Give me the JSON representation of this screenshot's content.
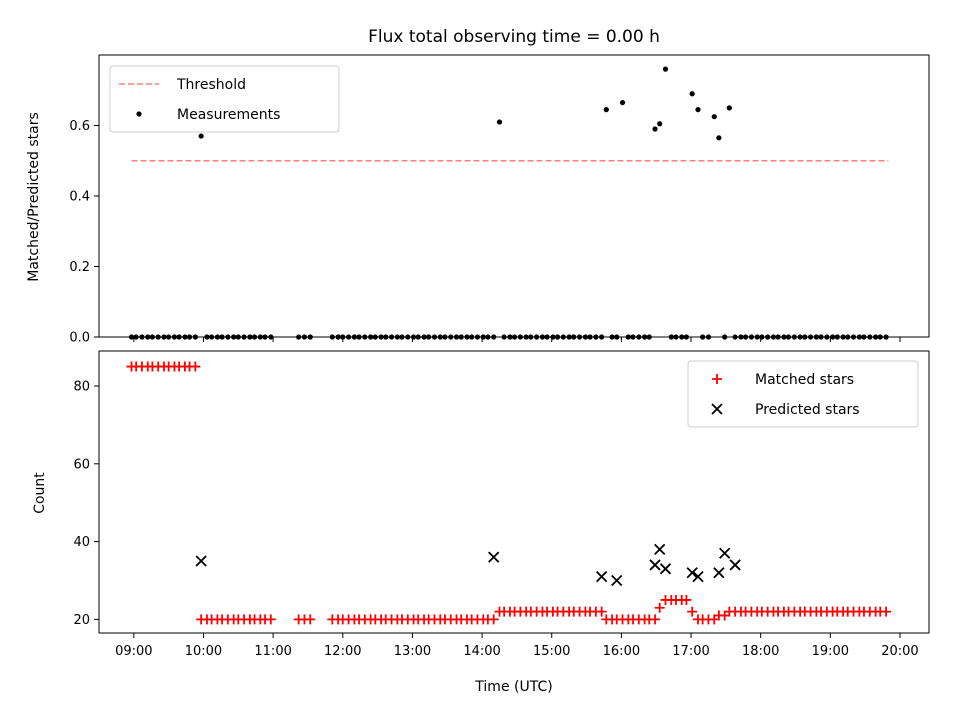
{
  "chart_data": [
    {
      "type": "scatter",
      "title": "Flux total observing time = 0.00 h",
      "xlabel": "",
      "ylabel": "Matched/Predicted stars",
      "xlim": [
        "08:30",
        "20:25"
      ],
      "ylim": [
        0,
        0.8
      ],
      "yticks": [
        0.0,
        0.2,
        0.4,
        0.6
      ],
      "ytick_labels": [
        "0.0",
        "0.2",
        "0.4",
        "0.6"
      ],
      "grid": false,
      "legend_position": "top-left",
      "threshold": {
        "name": "Threshold",
        "value": 0.5,
        "x_range": [
          "08:58",
          "19:50"
        ],
        "color": "#ff7f7f",
        "style": "dashed"
      },
      "series": [
        {
          "name": "Measurements",
          "color": "#000000",
          "marker": "dot",
          "x": [
            "08:58",
            "09:02",
            "09:07",
            "09:12",
            "09:16",
            "09:21",
            "09:26",
            "09:30",
            "09:35",
            "09:39",
            "09:44",
            "09:48",
            "09:53",
            "09:58",
            "10:03",
            "10:07",
            "10:12",
            "10:16",
            "10:21",
            "10:26",
            "10:30",
            "10:35",
            "10:40",
            "10:44",
            "10:49",
            "10:53",
            "10:58",
            "11:22",
            "11:27",
            "11:32",
            "11:51",
            "11:56",
            "12:00",
            "12:05",
            "12:10",
            "12:14",
            "12:19",
            "12:24",
            "12:28",
            "12:33",
            "12:37",
            "12:42",
            "12:47",
            "12:51",
            "12:56",
            "13:01",
            "13:05",
            "13:10",
            "13:14",
            "13:19",
            "13:24",
            "13:28",
            "13:33",
            "13:38",
            "13:42",
            "13:47",
            "13:51",
            "13:56",
            "14:01",
            "14:05",
            "14:10",
            "14:15",
            "14:19",
            "14:24",
            "14:28",
            "14:33",
            "14:38",
            "14:42",
            "14:47",
            "14:52",
            "14:56",
            "15:01",
            "15:05",
            "15:10",
            "15:15",
            "15:19",
            "15:24",
            "15:29",
            "15:33",
            "15:38",
            "15:43",
            "15:47",
            "15:52",
            "15:56",
            "16:01",
            "16:06",
            "16:10",
            "16:15",
            "16:20",
            "16:24",
            "16:29",
            "16:33",
            "16:38",
            "16:43",
            "16:47",
            "16:52",
            "16:56",
            "17:01",
            "17:06",
            "17:10",
            "17:15",
            "17:20",
            "17:24",
            "17:29",
            "17:33",
            "17:38",
            "17:43",
            "17:47",
            "17:52",
            "17:57",
            "18:01",
            "18:06",
            "18:11",
            "18:15",
            "18:20",
            "18:24",
            "18:29",
            "18:34",
            "18:38",
            "18:43",
            "18:48",
            "18:52",
            "18:57",
            "19:02",
            "19:06",
            "19:11",
            "19:15",
            "19:20",
            "19:25",
            "19:29",
            "19:34",
            "19:39",
            "19:43",
            "19:48"
          ],
          "y": [
            0,
            0,
            0,
            0,
            0,
            0,
            0,
            0,
            0,
            0,
            0,
            0,
            0,
            0.57,
            0,
            0,
            0,
            0,
            0,
            0,
            0,
            0,
            0,
            0,
            0,
            0,
            0,
            0,
            0,
            0,
            0,
            0,
            0,
            0,
            0,
            0,
            0,
            0,
            0,
            0,
            0,
            0,
            0,
            0,
            0,
            0,
            0,
            0,
            0,
            0,
            0,
            0,
            0,
            0,
            0,
            0,
            0,
            0,
            0,
            0,
            0,
            0.61,
            0,
            0,
            0,
            0,
            0,
            0,
            0,
            0,
            0,
            0,
            0,
            0,
            0,
            0,
            0,
            0,
            0,
            0,
            0,
            0.645,
            0,
            0,
            0.665,
            0,
            0,
            0,
            0,
            0,
            0.59,
            0.605,
            0.76,
            0,
            0,
            0,
            0,
            0.69,
            0.645,
            0,
            0,
            0.625,
            0.565,
            0,
            0.65,
            0,
            0,
            0,
            0,
            0,
            0,
            0,
            0,
            0,
            0,
            0,
            0,
            0,
            0,
            0,
            0,
            0,
            0,
            0,
            0,
            0,
            0,
            0,
            0,
            0,
            0,
            0,
            0,
            0
          ]
        }
      ]
    },
    {
      "type": "scatter",
      "title": "",
      "xlabel": "Time (UTC)",
      "ylabel": "Count",
      "xlim": [
        "08:30",
        "20:25"
      ],
      "ylim": [
        16.5,
        89
      ],
      "yticks": [
        20,
        40,
        60,
        80
      ],
      "ytick_labels": [
        "20",
        "40",
        "60",
        "80"
      ],
      "xticks": [
        "09:00",
        "10:00",
        "11:00",
        "12:00",
        "13:00",
        "14:00",
        "15:00",
        "16:00",
        "17:00",
        "18:00",
        "19:00",
        "20:00"
      ],
      "grid": false,
      "legend_position": "top-right",
      "series": [
        {
          "name": "Matched stars",
          "color": "#ff0000",
          "marker": "plus",
          "x": [
            "08:58",
            "09:02",
            "09:07",
            "09:12",
            "09:16",
            "09:21",
            "09:26",
            "09:30",
            "09:35",
            "09:39",
            "09:44",
            "09:48",
            "09:53",
            "09:58",
            "10:03",
            "10:07",
            "10:12",
            "10:16",
            "10:21",
            "10:26",
            "10:30",
            "10:35",
            "10:40",
            "10:44",
            "10:49",
            "10:53",
            "10:58",
            "11:22",
            "11:27",
            "11:32",
            "11:51",
            "11:56",
            "12:00",
            "12:05",
            "12:10",
            "12:14",
            "12:19",
            "12:24",
            "12:28",
            "12:33",
            "12:37",
            "12:42",
            "12:47",
            "12:51",
            "12:56",
            "13:01",
            "13:05",
            "13:10",
            "13:14",
            "13:19",
            "13:24",
            "13:28",
            "13:33",
            "13:38",
            "13:42",
            "13:47",
            "13:51",
            "13:56",
            "14:01",
            "14:05",
            "14:10",
            "14:15",
            "14:19",
            "14:24",
            "14:28",
            "14:33",
            "14:38",
            "14:42",
            "14:47",
            "14:52",
            "14:56",
            "15:01",
            "15:05",
            "15:10",
            "15:15",
            "15:19",
            "15:24",
            "15:29",
            "15:33",
            "15:38",
            "15:43",
            "15:47",
            "15:52",
            "15:56",
            "16:01",
            "16:06",
            "16:10",
            "16:15",
            "16:20",
            "16:24",
            "16:29",
            "16:33",
            "16:38",
            "16:43",
            "16:47",
            "16:52",
            "16:56",
            "17:01",
            "17:06",
            "17:10",
            "17:15",
            "17:20",
            "17:24",
            "17:29",
            "17:33",
            "17:38",
            "17:43",
            "17:47",
            "17:52",
            "17:57",
            "18:01",
            "18:06",
            "18:11",
            "18:15",
            "18:20",
            "18:24",
            "18:29",
            "18:34",
            "18:38",
            "18:43",
            "18:48",
            "18:52",
            "18:57",
            "19:02",
            "19:06",
            "19:11",
            "19:15",
            "19:20",
            "19:25",
            "19:29",
            "19:34",
            "19:39",
            "19:43",
            "19:48"
          ],
          "y": [
            85,
            85,
            85,
            85,
            85,
            85,
            85,
            85,
            85,
            85,
            85,
            85,
            85,
            20,
            20,
            20,
            20,
            20,
            20,
            20,
            20,
            20,
            20,
            20,
            20,
            20,
            20,
            20,
            20,
            20,
            20,
            20,
            20,
            20,
            20,
            20,
            20,
            20,
            20,
            20,
            20,
            20,
            20,
            20,
            20,
            20,
            20,
            20,
            20,
            20,
            20,
            20,
            20,
            20,
            20,
            20,
            20,
            20,
            20,
            20,
            20,
            22,
            22,
            22,
            22,
            22,
            22,
            22,
            22,
            22,
            22,
            22,
            22,
            22,
            22,
            22,
            22,
            22,
            22,
            22,
            22,
            20,
            20,
            20,
            20,
            20,
            20,
            20,
            20,
            20,
            20,
            23,
            25,
            25,
            25,
            25,
            25,
            22,
            20,
            20,
            20,
            20,
            21,
            21,
            22,
            22,
            22,
            22,
            22,
            22,
            22,
            22,
            22,
            22,
            22,
            22,
            22,
            22,
            22,
            22,
            22,
            22,
            22,
            22,
            22,
            22,
            22,
            22,
            22,
            22,
            22,
            22,
            22,
            22
          ]
        },
        {
          "name": "Predicted stars",
          "color": "#000000",
          "marker": "x",
          "x": [
            "09:58",
            "14:10",
            "15:43",
            "15:56",
            "16:29",
            "16:33",
            "16:38",
            "17:01",
            "17:06",
            "17:24",
            "17:29",
            "17:38"
          ],
          "y": [
            35,
            36,
            31,
            30,
            34,
            38,
            33,
            32,
            31,
            32,
            37,
            34
          ]
        }
      ]
    }
  ]
}
